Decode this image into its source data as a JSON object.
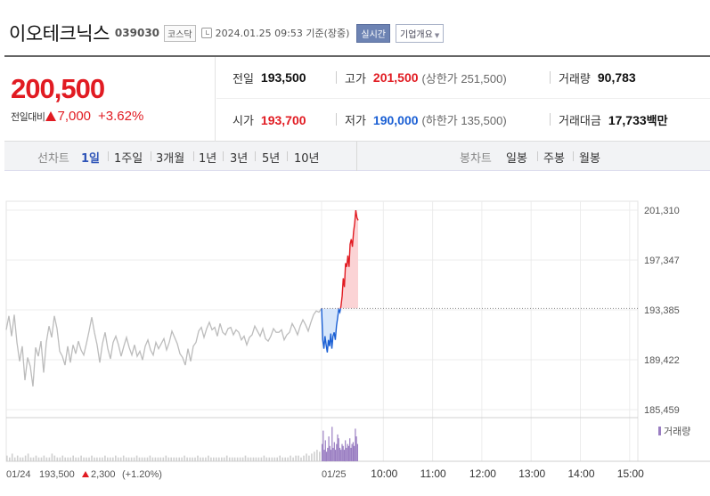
{
  "header": {
    "stock_name": "이오테크닉스",
    "stock_code": "039030",
    "market": "코스닥",
    "datetime": "2024.01.25 09:53",
    "basis": "기준(장중)",
    "realtime_button": "실시간",
    "company_button": "기업개요",
    "icons": {
      "clock": "clock-icon",
      "dropdown": "chevron-down-icon"
    }
  },
  "quote": {
    "current_price": "200,500",
    "change_label": "전일대비",
    "change_value": "7,000",
    "change_pct": "+3.62%",
    "colors": {
      "up": "#e11b22",
      "down": "#1a5fd4"
    },
    "prev_close": {
      "label": "전일",
      "value": "193,500"
    },
    "open": {
      "label": "시가",
      "value": "193,700"
    },
    "high": {
      "label": "고가",
      "value": "201,500",
      "limit_text": "(상한가 251,500)"
    },
    "low": {
      "label": "저가",
      "value": "190,000",
      "limit_text": "(하한가 135,500)"
    },
    "volume": {
      "label": "거래량",
      "value": "90,783"
    },
    "amount": {
      "label": "거래대금",
      "value": "17,733",
      "unit": "백만"
    }
  },
  "periods": {
    "line_title": "선차트",
    "line_items": [
      "1일",
      "1주일",
      "3개월",
      "1년",
      "3년",
      "5년",
      "10년"
    ],
    "active_index": 0,
    "candle_title": "봉차트",
    "candle_items": [
      "일봉",
      "주봉",
      "월봉"
    ]
  },
  "chart_data": {
    "type": "line",
    "y_ticks": [
      "201,310",
      "197,347",
      "193,385",
      "189,422",
      "185,459"
    ],
    "y_tick_values": [
      201310,
      197347,
      193385,
      189422,
      185459
    ],
    "ylim": [
      185459,
      201310
    ],
    "baseline": 193500,
    "x_ticks": [
      "01/25",
      "10:00",
      "11:00",
      "12:00",
      "13:00",
      "14:00",
      "15:00"
    ],
    "prev_day": {
      "label": "01/24",
      "close": "193,500",
      "change": "2,300",
      "change_pct": "(+1.20%)",
      "values": [
        191800,
        192900,
        191300,
        193000,
        190800,
        189300,
        190500,
        187800,
        189600,
        188900,
        187300,
        190400,
        189700,
        190900,
        188400,
        190800,
        192100,
        191200,
        192900,
        191900,
        190100,
        189700,
        189000,
        190500,
        189200,
        190600,
        189900,
        190900,
        190200,
        189800,
        190700,
        191700,
        192800,
        191600,
        190600,
        189200,
        190700,
        191600,
        190300,
        189500,
        190800,
        191300,
        190600,
        189700,
        190500,
        191200,
        190400,
        189800,
        190600,
        189700,
        190100,
        189400,
        190500,
        191000,
        190200,
        189800,
        190800,
        190300,
        190700,
        191100,
        190200,
        190800,
        191700,
        191200,
        190700,
        189900,
        189600,
        189000,
        190300,
        189300,
        190500,
        190800,
        191700,
        192000,
        191200,
        191900,
        192400,
        191800,
        192000,
        191300,
        192300,
        191600,
        191400,
        191900,
        192000,
        191400,
        191800,
        191600,
        191000,
        191300,
        190600,
        191200,
        191400,
        192100,
        191700,
        191300,
        191900,
        191100,
        190900,
        191300,
        191900,
        191600,
        191600,
        191800,
        191000,
        191400,
        191600,
        192300,
        191900,
        191400,
        192100,
        192600,
        192200,
        191700,
        192400,
        193000,
        193300,
        193200,
        193500
      ]
    },
    "today": {
      "values": [
        193500,
        191000,
        190300,
        191300,
        190600,
        190000,
        191000,
        190500,
        191500,
        190300,
        191300,
        191600,
        191000,
        192100,
        192700,
        193400,
        193200,
        193700,
        194500,
        195900,
        195200,
        197100,
        196800,
        197700,
        196800,
        198600,
        199000,
        198400,
        199600,
        200300,
        201300,
        200700,
        200500
      ]
    },
    "volume_label": "거래량",
    "volume_prev": [
      3,
      2,
      4,
      2,
      3,
      2,
      2,
      3,
      4,
      2,
      2,
      3,
      2,
      2,
      3,
      2,
      2,
      4,
      3,
      2,
      2,
      3,
      2,
      2,
      2,
      3,
      2,
      2,
      3,
      2,
      2,
      2,
      3,
      2,
      2,
      2,
      2,
      3,
      2,
      2,
      2,
      3,
      2,
      2,
      3,
      2,
      2,
      2,
      2,
      3,
      2,
      2,
      2,
      2,
      3,
      2,
      2,
      2,
      2,
      2,
      3,
      2,
      2,
      2,
      2,
      2,
      2,
      3,
      2,
      2,
      2,
      2,
      3,
      2,
      2,
      2,
      3,
      2,
      2,
      2,
      2,
      2,
      2,
      3,
      2,
      2,
      2,
      2,
      2,
      2,
      3,
      2,
      2,
      2,
      2,
      2,
      2,
      3,
      2,
      2,
      2,
      2,
      2,
      3,
      2,
      2,
      2,
      3,
      2,
      3,
      3,
      2,
      3,
      4,
      3,
      4,
      5,
      6,
      5
    ],
    "volume_today": [
      9,
      16,
      6,
      11,
      5,
      7,
      13,
      8,
      6,
      18,
      7,
      10,
      6,
      9,
      14,
      12,
      7,
      6,
      9,
      8,
      6,
      11,
      7,
      9,
      8,
      12,
      7,
      9,
      10,
      8,
      17,
      13,
      9
    ]
  }
}
